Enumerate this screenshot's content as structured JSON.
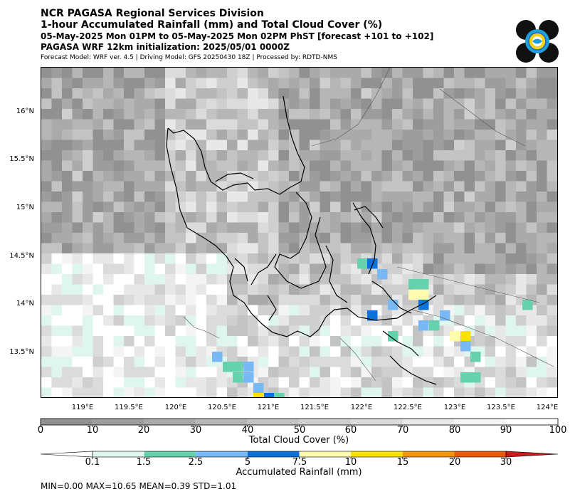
{
  "header": {
    "line1": "NCR PAGASA Regional Services Division",
    "line2": "1-hour Accumulated Rainfall (mm) and Total Cloud Cover (%)",
    "line3": "05-May-2025 Mon 01PM to 05-May-2025 Mon 02PM PhST [forecast +101 to +102]",
    "line4": "PAGASA WRF 12km initialization: 2025/05/01 0000Z",
    "line5": "Forecast Model: WRF ver. 4.5 | Driving Model: GFS 20250430 18Z | Processed by: RDTD-NMS"
  },
  "logo": {
    "name": "PAGASA seal",
    "colors": [
      "#111111",
      "#1ea0dc",
      "#f5d21a",
      "#ffffff"
    ]
  },
  "map": {
    "lat_labels": [
      "16°N",
      "15.5°N",
      "15°N",
      "14.5°N",
      "14°N",
      "13.5°N"
    ],
    "lon_labels": [
      "119°E",
      "119.5°E",
      "120°E",
      "120.5°E",
      "121°E",
      "121.5°E",
      "122°E",
      "122.5°E",
      "123°E",
      "123.5°E",
      "124°E"
    ]
  },
  "cloud_colorbar": {
    "ticks": [
      "0",
      "10",
      "20",
      "30",
      "40",
      "50",
      "60",
      "70",
      "80",
      "90",
      "100"
    ],
    "label": "Total Cloud Cover (%)",
    "colors": [
      "#919191",
      "#9d9d9d",
      "#aaaaaa",
      "#b6b6b6",
      "#c3c3c3",
      "#cfcfcf",
      "#dbdbdb",
      "#e8e8e8",
      "#f4f4f4",
      "#ffffff"
    ]
  },
  "rain_colorbar": {
    "ticks": [
      "0.1",
      "1.5",
      "2.5",
      "5",
      "7.5",
      "10",
      "15",
      "20",
      "30"
    ],
    "label": "Accumulated Rainfall (mm)",
    "colors": [
      "#ffffff",
      "#dff6ef",
      "#66d2ad",
      "#78b9f5",
      "#0b73d8",
      "#fffbb0",
      "#fbe100",
      "#f4930e",
      "#ea5a0c",
      "#c81c1c"
    ]
  },
  "stats": "MIN=0.00   MAX=10.65   MEAN=0.39   STD=1.01"
}
